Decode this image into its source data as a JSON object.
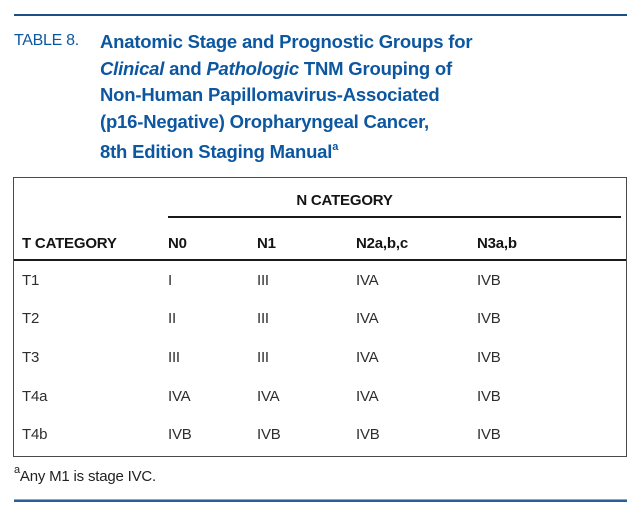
{
  "colors": {
    "title_blue": "#0d57a0",
    "rule_navy": "#1d4f87",
    "bottom_rule_blue": "#2a5f9e",
    "table_border": "#4a4a4a",
    "rule_black": "#1a1a1a"
  },
  "table_label": "TABLE 8.",
  "title": {
    "line1": "Anatomic Stage and Prognostic Groups for",
    "line2_italic1": "Clinical",
    "line2_mid": " and ",
    "line2_italic2": "Pathologic",
    "line2_rest": " TNM Grouping of",
    "line3": "Non-Human Papillomavirus-Associated",
    "line4": "(p16-Negative) Oropharyngeal Cancer,",
    "line5": "8th Edition Staging Manual",
    "line5_sup": "a"
  },
  "table": {
    "span_header": "N CATEGORY",
    "columns": [
      "T CATEGORY",
      "N0",
      "N1",
      "N2a,b,c",
      "N3a,b"
    ],
    "rows": [
      {
        "t": "T1",
        "values": [
          "I",
          "III",
          "IVA",
          "IVB"
        ]
      },
      {
        "t": "T2",
        "values": [
          "II",
          "III",
          "IVA",
          "IVB"
        ]
      },
      {
        "t": "T3",
        "values": [
          "III",
          "III",
          "IVA",
          "IVB"
        ]
      },
      {
        "t": "T4a",
        "values": [
          "IVA",
          "IVA",
          "IVA",
          "IVB"
        ]
      },
      {
        "t": "T4b",
        "values": [
          "IVB",
          "IVB",
          "IVB",
          "IVB"
        ]
      }
    ]
  },
  "footnote": {
    "sup": "a",
    "text": "Any M1 is stage IVC."
  }
}
